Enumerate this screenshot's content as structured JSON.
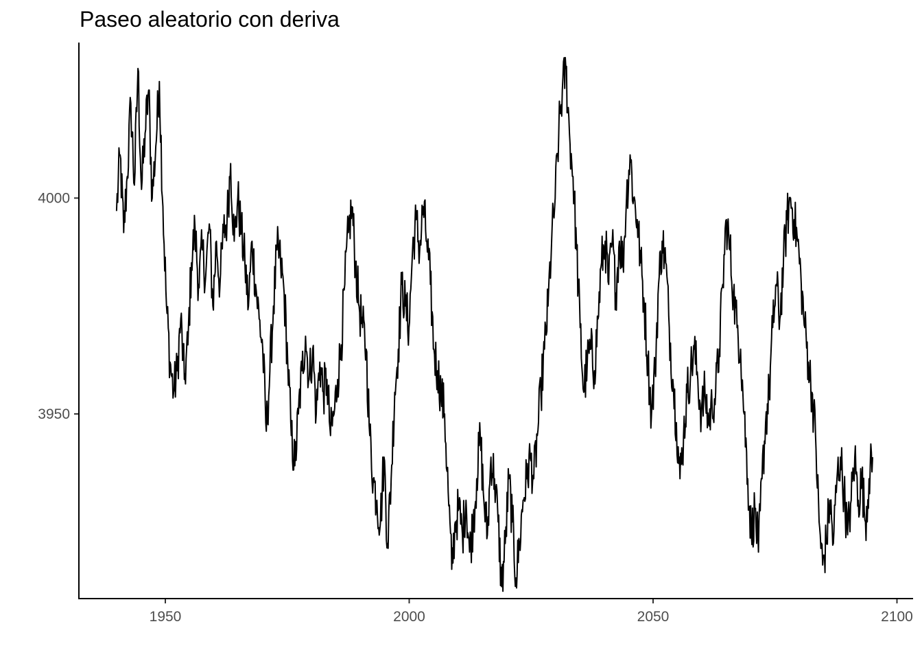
{
  "chart_data": {
    "type": "line",
    "title": "Paseo aleatorio con deriva",
    "xlabel": "",
    "ylabel": "",
    "xlim": [
      1933,
      2101
    ],
    "ylim": [
      3906,
      4035
    ],
    "x_ticks": [
      1950,
      2000,
      2050,
      2100
    ],
    "x_tick_labels": [
      "1950",
      "2000",
      "2050",
      "2100"
    ],
    "y_ticks": [
      3950,
      4000
    ],
    "y_tick_labels": [
      "3950",
      "4000"
    ],
    "grid": false,
    "legend": "none",
    "line_color": "#000000",
    "series": [
      {
        "x_start": 1940,
        "x_end": 2095,
        "values": [
          3997,
          4010,
          3992,
          4005,
          4022,
          4003,
          4030,
          4002,
          4015,
          4025,
          4000,
          4012,
          4027,
          3998,
          3975,
          3962,
          3955,
          3960,
          3972,
          3958,
          3966,
          3985,
          3993,
          3980,
          3988,
          3982,
          3994,
          3975,
          3990,
          3980,
          3992,
          3995,
          4008,
          3990,
          4000,
          3992,
          3985,
          3975,
          3990,
          3980,
          3972,
          3965,
          3946,
          3960,
          3975,
          3988,
          3985,
          3978,
          3962,
          3945,
          3938,
          3950,
          3960,
          3968,
          3958,
          3965,
          3950,
          3962,
          3955,
          3958,
          3945,
          3950,
          3958,
          3966,
          3980,
          3992,
          3998,
          3985,
          3975,
          3970,
          3965,
          3945,
          3935,
          3930,
          3925,
          3940,
          3920,
          3935,
          3955,
          3965,
          3980,
          3975,
          3970,
          3988,
          3995,
          3988,
          3998,
          3990,
          3980,
          3965,
          3960,
          3955,
          3950,
          3932,
          3914,
          3925,
          3928,
          3922,
          3930,
          3918,
          3925,
          3935,
          3945,
          3930,
          3922,
          3940,
          3935,
          3925,
          3910,
          3920,
          3935,
          3925,
          3912,
          3920,
          3930,
          3935,
          3940,
          3935,
          3945,
          3955,
          3965,
          3975,
          3990,
          4000,
          4015,
          4025,
          4030,
          4015,
          4005,
          3988,
          3970,
          3955,
          3962,
          3965,
          3960,
          3972,
          3985,
          3990,
          3980,
          3990,
          3978,
          3990,
          3985,
          4000,
          4010,
          4000,
          3995,
          3985,
          3975,
          3962,
          3950,
          3960,
          3980,
          3990,
          3985,
          3970,
          3958,
          3948,
          3935,
          3945,
          3955,
          3960,
          3965,
          3958,
          3950,
          3955,
          3948,
          3952,
          3955,
          3965,
          3980,
          3995,
          3988,
          3978,
          3970,
          3965,
          3950,
          3935,
          3922,
          3928,
          3918,
          3935,
          3948,
          3955,
          3970,
          3980,
          3972,
          3985,
          3995,
          4000,
          3995,
          3990,
          3980,
          3970,
          3962,
          3955,
          3945,
          3925,
          3915,
          3920,
          3930,
          3920,
          3935,
          3940,
          3932,
          3922,
          3930,
          3940,
          3930,
          3935,
          3925,
          3935,
          3940
        ]
      }
    ]
  }
}
